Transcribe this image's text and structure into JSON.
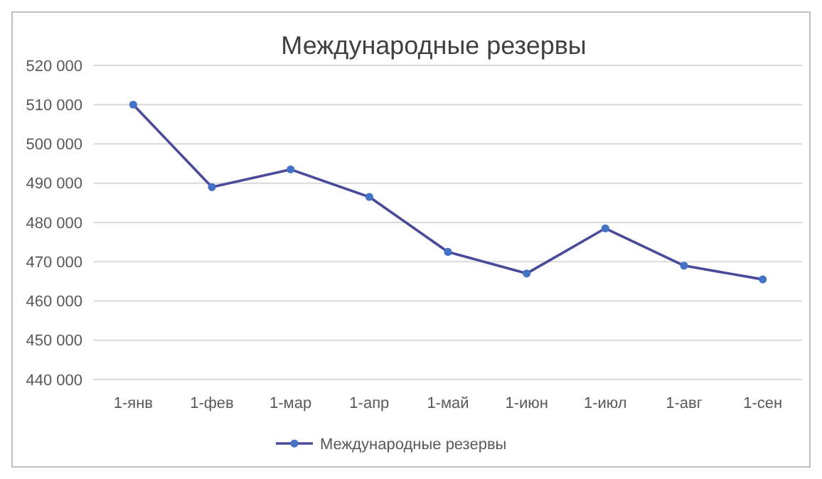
{
  "chart_data": {
    "type": "line",
    "title": "Международные резервы",
    "categories": [
      "1-янв",
      "1-фев",
      "1-мар",
      "1-апр",
      "1-май",
      "1-июн",
      "1-июл",
      "1-авг",
      "1-сен"
    ],
    "series": [
      {
        "name": "Международные резервы",
        "color": "#4a4a9a",
        "values": [
          510000,
          489000,
          493500,
          486500,
          472500,
          467000,
          478500,
          469000,
          465500
        ]
      }
    ],
    "ylim": [
      440000,
      520000
    ],
    "yticks": [
      {
        "value": 440000,
        "label": "440 000"
      },
      {
        "value": 450000,
        "label": "450 000"
      },
      {
        "value": 460000,
        "label": "460 000"
      },
      {
        "value": 470000,
        "label": "470 000"
      },
      {
        "value": 480000,
        "label": "480 000"
      },
      {
        "value": 490000,
        "label": "490 000"
      },
      {
        "value": 500000,
        "label": "500 000"
      },
      {
        "value": 510000,
        "label": "510 000"
      },
      {
        "value": 520000,
        "label": "520 000"
      }
    ],
    "grid": "y",
    "legend": "bottom",
    "marker": "circle",
    "line_style": "solid"
  }
}
